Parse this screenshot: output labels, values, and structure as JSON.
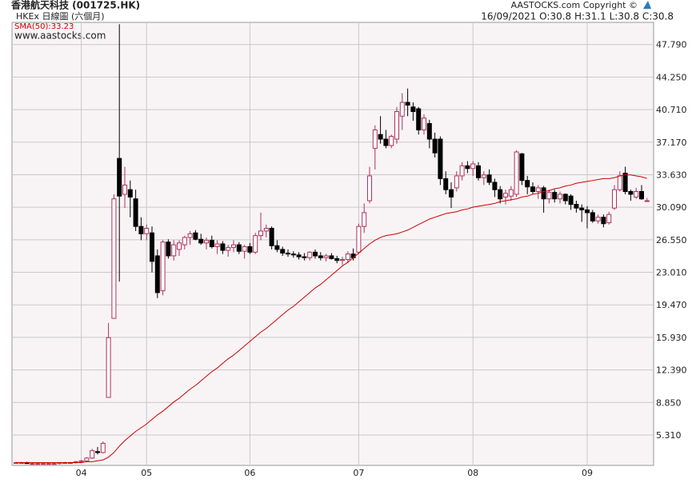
{
  "chart_data": {
    "type": "candlestick",
    "title": "香港航天科技 (001725.HK)",
    "subtitle": "HKEx 日線圖 (六個月)",
    "website": "www.aastocks.com",
    "copyright": "AASTOCKS.com Copyright ©",
    "quote": "16/09/2021  O:30.8  H:31.1  L:30.8  C:30.8",
    "sma_label": "SMA(50):33.23",
    "up_color": "#b0305a",
    "down_color": "#000000",
    "grid": true,
    "ylim": [
      2.0,
      50.2
    ],
    "yticks": [
      {
        "value": 5.31,
        "label": "5.310"
      },
      {
        "value": 8.85,
        "label": "8.850"
      },
      {
        "value": 12.39,
        "label": "12.390"
      },
      {
        "value": 15.93,
        "label": "15.930"
      },
      {
        "value": 19.47,
        "label": "19.470"
      },
      {
        "value": 23.01,
        "label": "23.010"
      },
      {
        "value": 26.55,
        "label": "26.550"
      },
      {
        "value": 30.09,
        "label": "30.090"
      },
      {
        "value": 33.63,
        "label": "33.630"
      },
      {
        "value": 37.17,
        "label": "37.170"
      },
      {
        "value": 40.71,
        "label": "40.710"
      },
      {
        "value": 44.25,
        "label": "44.250"
      },
      {
        "value": 47.79,
        "label": "47.790"
      }
    ],
    "categories": [
      null,
      null,
      null,
      null,
      null,
      null,
      null,
      null,
      null,
      null,
      null,
      null,
      "04",
      null,
      null,
      null,
      null,
      null,
      null,
      null,
      null,
      null,
      null,
      null,
      "05",
      null,
      null,
      null,
      null,
      null,
      null,
      null,
      null,
      null,
      null,
      null,
      null,
      null,
      null,
      null,
      null,
      null,
      null,
      "06",
      null,
      null,
      null,
      null,
      null,
      null,
      null,
      null,
      null,
      null,
      null,
      null,
      null,
      null,
      null,
      null,
      null,
      null,
      null,
      "07",
      null,
      null,
      null,
      null,
      null,
      null,
      null,
      null,
      null,
      null,
      null,
      null,
      null,
      null,
      null,
      null,
      null,
      null,
      null,
      null,
      "08",
      null,
      null,
      null,
      null,
      null,
      null,
      null,
      null,
      null,
      null,
      null,
      null,
      null,
      null,
      null,
      null,
      null,
      null,
      null,
      null,
      "09",
      null,
      null,
      null,
      null,
      null,
      null,
      null,
      null,
      null,
      null,
      null
    ],
    "open": [
      2.3,
      2.3,
      2.3,
      2.2,
      2.2,
      2.2,
      2.2,
      2.2,
      2.2,
      2.3,
      2.3,
      2.3,
      2.4,
      2.5,
      2.8,
      3.5,
      3.4,
      9.4,
      18,
      35.4,
      31.5,
      32,
      31,
      28,
      27.2,
      27.3,
      24.8,
      21,
      26.3,
      24.8,
      25.5,
      26,
      26.8,
      27.3,
      26.6,
      26.2,
      26.5,
      25.8,
      26.1,
      25.4,
      25.7,
      26,
      25.3,
      25.8,
      25.2,
      27,
      27.5,
      27.8,
      25.9,
      25.5,
      25.1,
      25,
      24.9,
      24.7,
      24.6,
      25.2,
      24.8,
      24.6,
      24.8,
      24.5,
      24.3,
      24.4,
      25,
      25.2,
      28,
      30.8,
      36.5,
      38,
      37.5,
      36.8,
      37.5,
      40,
      41.5,
      41,
      40.8,
      38.5,
      39.2,
      37.5,
      37.5,
      33.2,
      32,
      32.2,
      33.5,
      34.6,
      34.3,
      34.6,
      33.3,
      33.6,
      32.8,
      32,
      31.2,
      31.3,
      31.5,
      35.9,
      33,
      32.3,
      31.8,
      32.2,
      31,
      31.7,
      31,
      31.5,
      31.3,
      30.4,
      30,
      29.8,
      29.5,
      28.6,
      29,
      28.4,
      30,
      32,
      33.8,
      31.8,
      31.2,
      31.8,
      30.8
    ],
    "high": [
      2.4,
      2.4,
      2.4,
      2.3,
      2.3,
      2.3,
      2.3,
      2.3,
      2.3,
      2.4,
      2.4,
      2.5,
      2.6,
      2.9,
      3.8,
      4.0,
      4.6,
      17.5,
      31.5,
      50,
      34.5,
      33,
      32,
      29,
      28.2,
      28,
      25.5,
      26.5,
      26.6,
      26.5,
      26.5,
      27,
      27.5,
      27.6,
      27.2,
      26.8,
      27,
      26.5,
      26.4,
      26,
      26.5,
      26.3,
      26,
      26.2,
      27.3,
      29.5,
      28.2,
      28,
      26.5,
      25.8,
      25.5,
      25.3,
      25.2,
      25.1,
      25.3,
      25.5,
      25.2,
      25,
      25.1,
      24.8,
      24.7,
      25.3,
      25.6,
      28.3,
      30.5,
      34.5,
      39,
      40,
      38.5,
      38,
      41,
      42.5,
      43,
      41.5,
      41,
      40.2,
      39.6,
      38.2,
      37.8,
      34,
      32.8,
      34,
      35,
      35.1,
      35.1,
      35,
      34,
      34.2,
      33.2,
      32.4,
      32,
      32.4,
      36.3,
      36,
      33.5,
      32.8,
      32.5,
      32.4,
      32,
      32,
      31.8,
      31.6,
      31.5,
      30.8,
      30.4,
      30.2,
      29.8,
      29.3,
      29.3,
      29.6,
      32.5,
      34,
      34.5,
      32,
      32.2,
      32.5,
      31.1
    ],
    "low": [
      2.2,
      2.2,
      2.2,
      2.1,
      2.1,
      2.1,
      2.1,
      2.1,
      2.1,
      2.2,
      2.2,
      2.2,
      2.3,
      2.4,
      2.7,
      3.2,
      3.3,
      9.4,
      18,
      22,
      30,
      29,
      27.5,
      26.5,
      26.5,
      23,
      20.2,
      20.5,
      24.5,
      24.3,
      24.8,
      25.5,
      26,
      26.5,
      26,
      25.5,
      25.6,
      25,
      25,
      24.7,
      25.2,
      25,
      24.5,
      25,
      25,
      26.5,
      26.8,
      25.5,
      25.2,
      24.8,
      24.7,
      24.6,
      24.4,
      24.3,
      24.3,
      24.5,
      24.3,
      24.2,
      24.4,
      24,
      23.8,
      24,
      24.3,
      25,
      27.3,
      30.5,
      34.2,
      37,
      36.5,
      36.5,
      37,
      38.5,
      40,
      39.5,
      38,
      38,
      36.5,
      35.5,
      32.5,
      31.5,
      30,
      31.8,
      33,
      33.8,
      33.5,
      33,
      32.5,
      32.5,
      31.2,
      30.5,
      30.4,
      30.8,
      31.2,
      32.5,
      31.5,
      31.5,
      31,
      29.5,
      30.5,
      30.6,
      30.5,
      30.4,
      29.8,
      29.5,
      28.5,
      27.8,
      28.4,
      28.3,
      27.9,
      28.2,
      29.8,
      31.8,
      31.5,
      30.8,
      31,
      30.9,
      30.8
    ],
    "close": [
      2.3,
      2.3,
      2.2,
      2.2,
      2.2,
      2.2,
      2.2,
      2.2,
      2.3,
      2.3,
      2.3,
      2.4,
      2.5,
      2.8,
      3.6,
      3.4,
      4.4,
      15.9,
      31,
      31.3,
      32.5,
      31.2,
      28,
      27.2,
      27.8,
      24.2,
      20.8,
      26.3,
      24.8,
      26,
      26.2,
      26.8,
      27.2,
      26.6,
      26.2,
      26.5,
      25.8,
      26.1,
      25.4,
      25.7,
      26,
      25.3,
      25.8,
      25.2,
      27,
      27.5,
      27.8,
      25.9,
      25.5,
      25.1,
      25,
      24.9,
      24.7,
      24.6,
      25.2,
      24.8,
      24.6,
      24.8,
      24.5,
      24.3,
      24.4,
      25,
      24.6,
      28,
      29.5,
      33.5,
      38.5,
      37.5,
      36.8,
      37.8,
      40.5,
      41.5,
      41.2,
      40.5,
      38.5,
      39.8,
      37.5,
      36,
      33.2,
      32,
      31.2,
      33.5,
      34.6,
      34.3,
      34.8,
      33.3,
      33.6,
      32.8,
      32,
      31,
      31.6,
      32,
      36.1,
      33,
      32.3,
      31.8,
      32.2,
      31,
      31.7,
      31,
      31.5,
      30.8,
      30.4,
      30,
      29.8,
      29.5,
      28.6,
      29,
      28.3,
      29.3,
      32,
      33.5,
      31.8,
      31.5,
      31.8,
      31,
      30.8
    ],
    "sma": {
      "color": "#cc0000",
      "values": [
        2.3,
        2.3,
        2.3,
        2.3,
        2.3,
        2.3,
        2.3,
        2.3,
        2.3,
        2.3,
        2.3,
        2.3,
        2.3,
        2.4,
        2.4,
        2.5,
        2.6,
        2.9,
        3.4,
        4.1,
        4.7,
        5.2,
        5.7,
        6.1,
        6.5,
        7.0,
        7.5,
        7.9,
        8.4,
        8.9,
        9.3,
        9.8,
        10.3,
        10.7,
        11.2,
        11.7,
        12.2,
        12.6,
        13.1,
        13.6,
        14.0,
        14.5,
        15.0,
        15.5,
        16.0,
        16.5,
        16.9,
        17.4,
        17.9,
        18.4,
        18.9,
        19.3,
        19.8,
        20.3,
        20.8,
        21.3,
        21.7,
        22.2,
        22.7,
        23.2,
        23.7,
        24.1,
        24.6,
        25.1,
        25.6,
        26.1,
        26.5,
        26.8,
        27.0,
        27.1,
        27.2,
        27.4,
        27.6,
        27.9,
        28.2,
        28.5,
        28.8,
        29.0,
        29.2,
        29.4,
        29.5,
        29.6,
        29.8,
        29.9,
        30.1,
        30.2,
        30.3,
        30.4,
        30.5,
        30.7,
        30.8,
        30.9,
        31.0,
        31.2,
        31.3,
        31.5,
        31.6,
        31.8,
        31.9,
        32.1,
        32.2,
        32.4,
        32.5,
        32.7,
        32.8,
        32.9,
        33.0,
        33.1,
        33.2,
        33.2,
        33.3,
        33.5,
        33.6,
        33.6,
        33.5,
        33.4,
        33.23
      ]
    }
  }
}
